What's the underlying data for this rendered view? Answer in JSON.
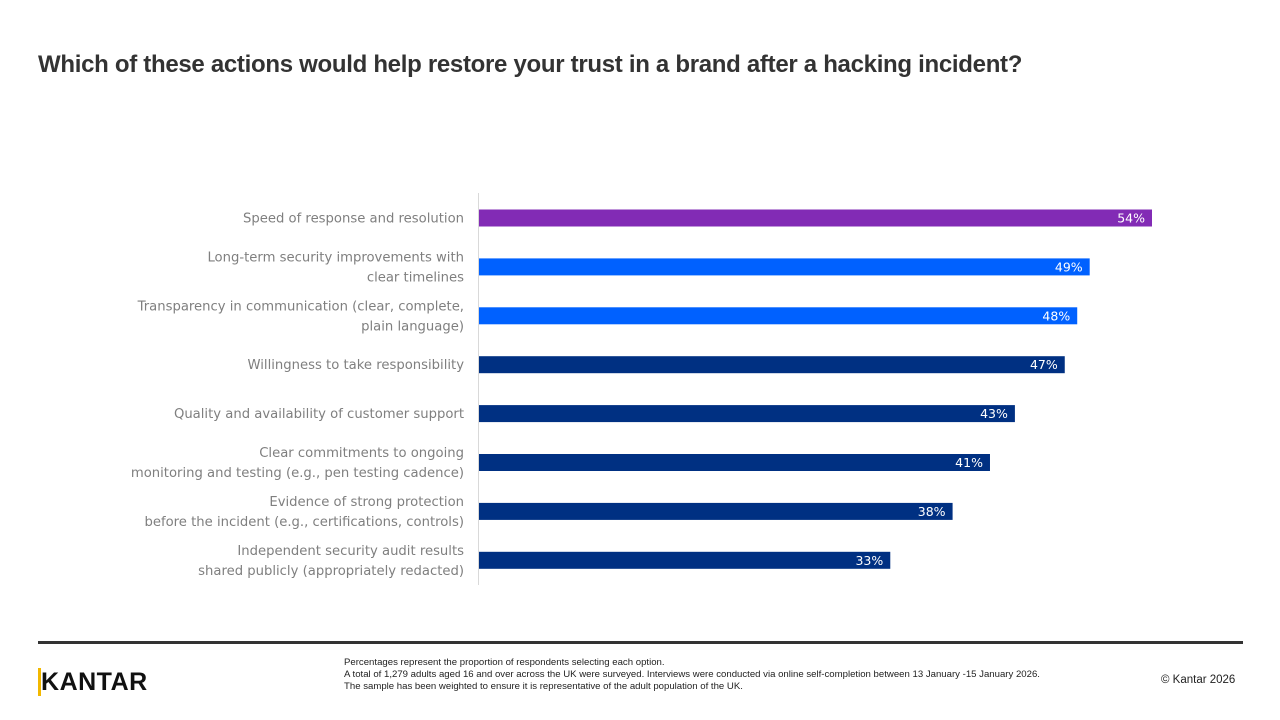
{
  "title": "Which of these actions would help restore your trust in a brand after a hacking incident?",
  "chart_data": {
    "type": "bar",
    "orientation": "horizontal",
    "categories": [
      [
        "Speed of response and resolution"
      ],
      [
        "Long-term security improvements with",
        "clear timelines"
      ],
      [
        "Transparency in communication (clear, complete,",
        "plain language)"
      ],
      [
        "Willingness to take responsibility"
      ],
      [
        "Quality and availability of customer support"
      ],
      [
        "Clear commitments to ongoing",
        "monitoring and testing (e.g., pen testing cadence)"
      ],
      [
        "Evidence of strong protection",
        "before the incident (e.g., certifications, controls)"
      ],
      [
        "Independent security audit results",
        "shared publicly (appropriately redacted)"
      ]
    ],
    "values": [
      54,
      49,
      48,
      47,
      43,
      41,
      38,
      33
    ],
    "labels": [
      "54%",
      "49%",
      "48%",
      "47%",
      "43%",
      "41%",
      "38%",
      "33%"
    ],
    "colors": [
      "#822BB5",
      "#0061FF",
      "#0061FF",
      "#003082",
      "#003082",
      "#003082",
      "#003082",
      "#003082"
    ],
    "unit": "%",
    "grid": false,
    "legend": "none"
  },
  "footer": {
    "logo": "KANTAR",
    "notes": [
      "Percentages represent the proportion of respondents selecting each option.",
      "A total of 1,279 adults aged 16 and over across the UK were surveyed. Interviews were conducted via online self-completion between 13 January -15 January 2026. The sample has been weighted to ensure it is representative of the adult population of the UK."
    ],
    "copyright": "© Kantar 2026"
  }
}
